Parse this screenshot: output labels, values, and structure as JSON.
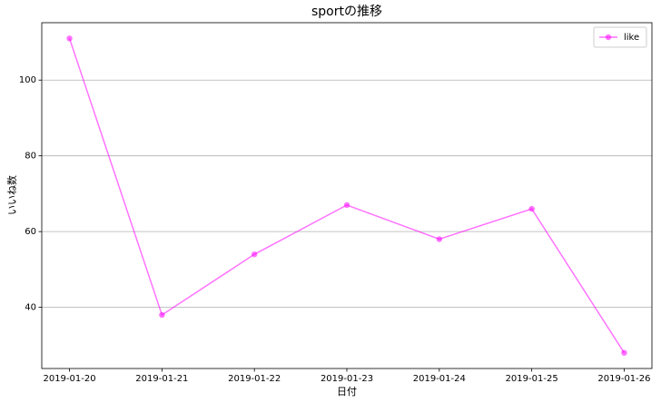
{
  "chart_data": {
    "type": "line",
    "title": "sportの推移",
    "x_label": "日付",
    "y_label": "いいね数",
    "categories": [
      "2019-01-20",
      "2019-01-21",
      "2019-01-22",
      "2019-01-23",
      "2019-01-24",
      "2019-01-25",
      "2019-01-26"
    ],
    "series": [
      {
        "name": "like",
        "color": "#ff00ff",
        "values": [
          111,
          38,
          54,
          67,
          58,
          66,
          28
        ]
      }
    ],
    "ylim": [
      23.85,
      115.15
    ],
    "yticks": [
      40,
      60,
      80,
      100
    ],
    "grid": true,
    "legend": "upper right"
  }
}
